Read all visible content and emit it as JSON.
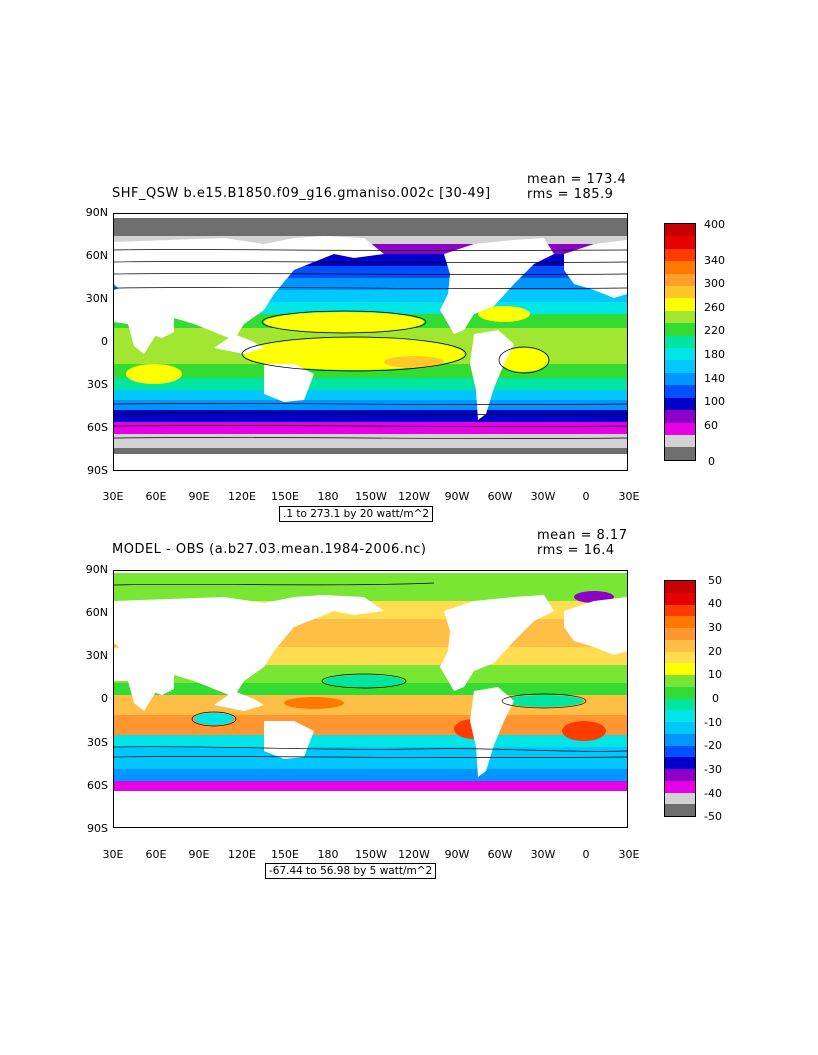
{
  "panel1": {
    "title": "SHF_QSW b.e15.B1850.f09_g16.gmaniso.002c  [30-49]",
    "mean": "mean = 173.4",
    "rms": "rms = 185.9",
    "lat_labels": [
      "90N",
      "60N",
      "30N",
      "0",
      "30S",
      "60S",
      "90S"
    ],
    "lon_labels": [
      "30E",
      "60E",
      "90E",
      "120E",
      "150E",
      "180",
      "150W",
      "120W",
      "90W",
      "60W",
      "30W",
      "0",
      "30E"
    ],
    "contour_info": ".1 to 273.1 by 20 watt/m^2",
    "colorbar_labels": [
      "400",
      "340",
      "300",
      "260",
      "220",
      "180",
      "140",
      "100",
      "60",
      "0"
    ],
    "colorbar_colors": [
      "#c80000",
      "#e60000",
      "#ff3c00",
      "#ff7800",
      "#ffa028",
      "#ffc828",
      "#ffff00",
      "#a0e632",
      "#32dc32",
      "#00e6a0",
      "#00e6e6",
      "#00c8ff",
      "#0096ff",
      "#0050ff",
      "#0000c8",
      "#8c00c8",
      "#e600e6",
      "#d2d2d2",
      "#6e6e6e"
    ]
  },
  "panel2": {
    "title": "MODEL - OBS (a.b27.03.mean.1984-2006.nc)",
    "mean": "mean = 8.17",
    "rms": "rms = 16.4",
    "lat_labels": [
      "90N",
      "60N",
      "30N",
      "0",
      "30S",
      "60S",
      "90S"
    ],
    "lon_labels": [
      "30E",
      "60E",
      "90E",
      "120E",
      "150E",
      "180",
      "150W",
      "120W",
      "90W",
      "60W",
      "30W",
      "0",
      "30E"
    ],
    "contour_info": "-67.44 to 56.98 by 5 watt/m^2",
    "colorbar_labels": [
      "50",
      "40",
      "30",
      "20",
      "10",
      "0",
      "-10",
      "-20",
      "-30",
      "-40",
      "-50"
    ],
    "colorbar_colors": [
      "#c80000",
      "#e60000",
      "#ff3c00",
      "#ff7800",
      "#ff9632",
      "#ffbe46",
      "#ffdc50",
      "#ffff00",
      "#78e632",
      "#32dc32",
      "#00e6a0",
      "#00e6e6",
      "#00c8ff",
      "#0096ff",
      "#0050ff",
      "#0000c8",
      "#8c00c8",
      "#e600e6",
      "#d2d2d2",
      "#6e6e6e"
    ]
  }
}
